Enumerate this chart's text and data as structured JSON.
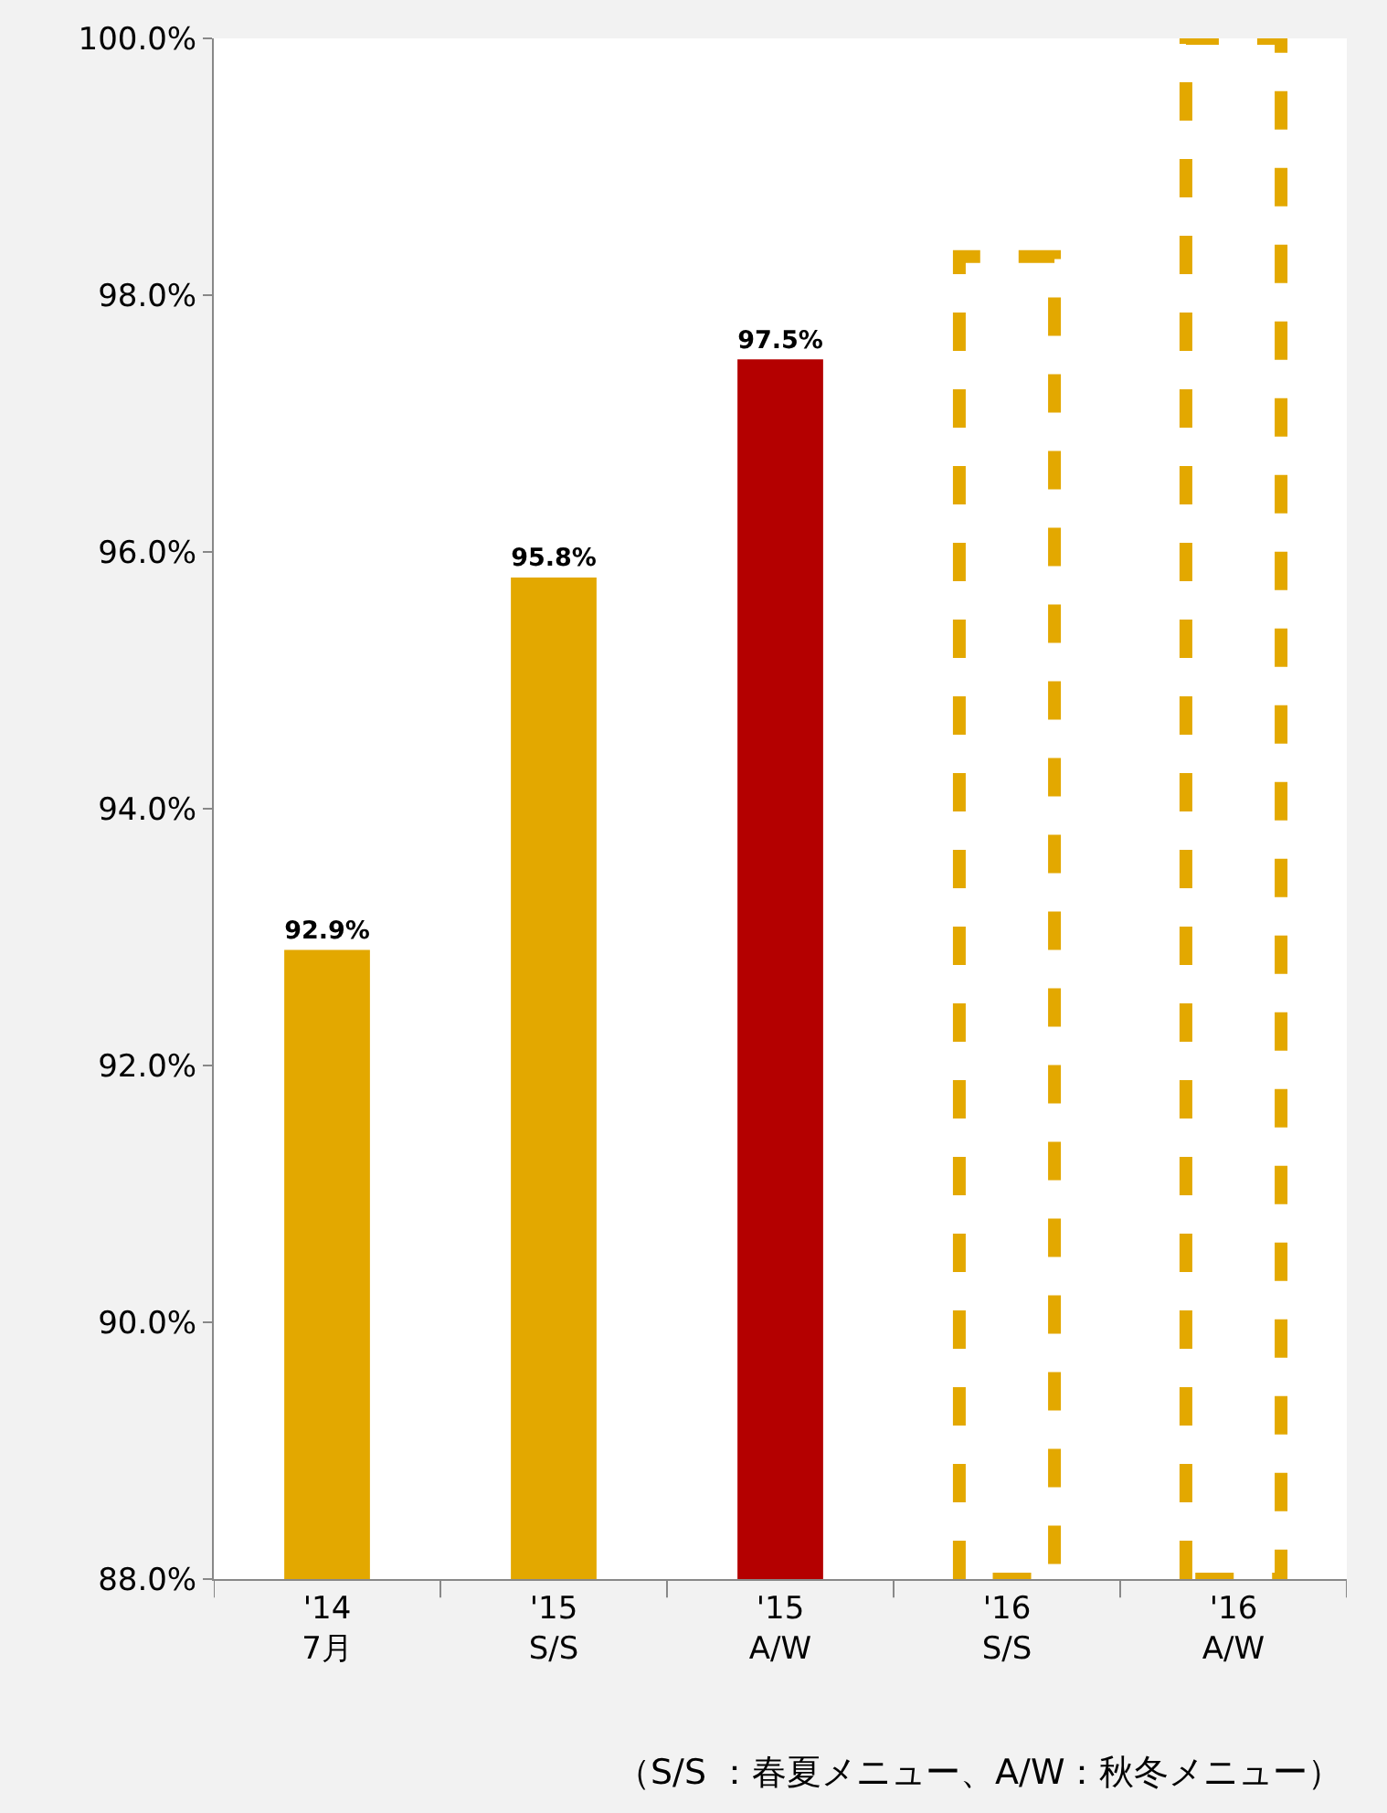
{
  "chart_data": {
    "type": "bar",
    "categories": [
      "'14\n7月",
      "'15\nS/S",
      "'15\nA/W",
      "'16\nS/S",
      "'16\nA/W"
    ],
    "series": [
      {
        "colors": [
          "#e3a800",
          "#e3a800",
          "#b40000",
          "#e3a800",
          "#e3a800"
        ],
        "values": [
          92.9,
          95.8,
          97.5,
          null,
          null
        ],
        "value_labels": [
          "92.9%",
          "95.8%",
          "97.5%",
          null,
          null
        ]
      },
      {
        "color": "#e3a800",
        "line_style": "dashed",
        "values": [
          null,
          null,
          null,
          98.3,
          100.0
        ]
      }
    ],
    "ylim": [
      88,
      100
    ],
    "yticks": [
      {
        "value": 88,
        "label": "88.0%"
      },
      {
        "value": 90,
        "label": "90.0%"
      },
      {
        "value": 92,
        "label": "92.0%"
      },
      {
        "value": 94,
        "label": "94.0%"
      },
      {
        "value": 96,
        "label": "96.0%"
      },
      {
        "value": 98,
        "label": "98.0%"
      },
      {
        "value": 100,
        "label": "100.0%"
      }
    ],
    "annotations": [
      "（S/S ：春夏メニュー、A/W：秋冬メニュー）"
    ]
  }
}
